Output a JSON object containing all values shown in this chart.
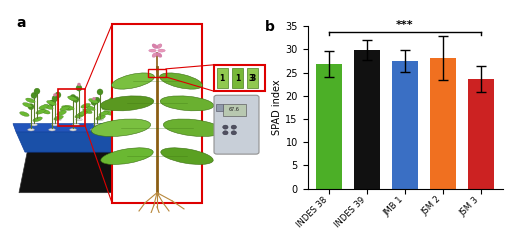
{
  "categories": [
    "INDES 38",
    "INDES 39",
    "JMB 1",
    "JSM 2",
    "JSM 3"
  ],
  "values": [
    26.8,
    29.9,
    27.5,
    28.2,
    23.7
  ],
  "errors": [
    2.8,
    2.2,
    2.4,
    4.8,
    2.8
  ],
  "bar_colors": [
    "#4caf27",
    "#111111",
    "#3a6fc4",
    "#f07020",
    "#cc2222"
  ],
  "ylabel": "SPAD index",
  "ylim": [
    0,
    35
  ],
  "yticks": [
    0,
    5,
    10,
    15,
    20,
    25,
    30,
    35
  ],
  "sig_label": "***",
  "panel_a_label": "a",
  "panel_b_label": "b",
  "background_color": "#ffffff",
  "tray_color": "#111111",
  "tray_blue": "#1a50a8",
  "tray_blue2": "#2255bb",
  "plant_green": "#6ab832",
  "plant_green2": "#4a9020",
  "stem_color": "#8B5e14",
  "root_color": "#b8883c",
  "red_line": "#dd0000",
  "leaf_seg_green": "#78bc30",
  "spad_body": "#c8cfd8",
  "spad_screen": "#b8c8b0"
}
